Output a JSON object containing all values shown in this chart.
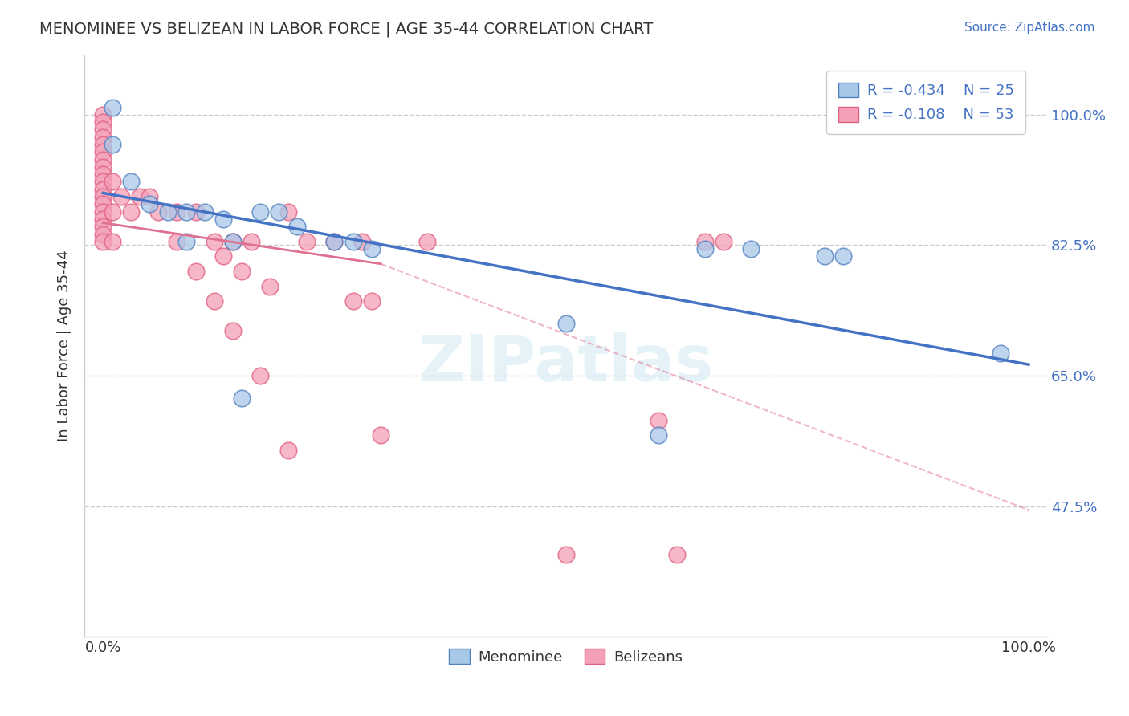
{
  "title": "MENOMINEE VS BELIZEAN IN LABOR FORCE | AGE 35-44 CORRELATION CHART",
  "source": "Source: ZipAtlas.com",
  "ylabel": "In Labor Force | Age 35-44",
  "xlim": [
    -0.02,
    1.02
  ],
  "ylim": [
    0.3,
    1.08
  ],
  "yticks": [
    0.475,
    0.65,
    0.825,
    1.0
  ],
  "ytick_labels": [
    "47.5%",
    "65.0%",
    "82.5%",
    "100.0%"
  ],
  "xtick_labels": [
    "0.0%",
    "100.0%"
  ],
  "legend_labels": [
    "Menominee",
    "Belizeans"
  ],
  "menominee_R": "-0.434",
  "menominee_N": "25",
  "belizean_R": "-0.108",
  "belizean_N": "53",
  "menominee_color": "#a8c8e8",
  "belizean_color": "#f4a0b8",
  "menominee_edge_color": "#5080c0",
  "belizean_edge_color": "#e06080",
  "menominee_line_color": "#4472c4",
  "belizean_line_color": "#e07090",
  "watermark": "ZIPatlas",
  "background_color": "#ffffff",
  "menominee_x": [
    0.01,
    0.01,
    0.03,
    0.05,
    0.07,
    0.09,
    0.09,
    0.11,
    0.13,
    0.14,
    0.15,
    0.17,
    0.19,
    0.21,
    0.25,
    0.27,
    0.29,
    0.5,
    0.65,
    0.7,
    0.78,
    0.8,
    0.95,
    0.97,
    0.6
  ],
  "menominee_y": [
    1.01,
    0.96,
    0.91,
    0.88,
    0.87,
    0.87,
    0.83,
    0.87,
    0.86,
    0.83,
    0.62,
    0.87,
    0.87,
    0.85,
    0.83,
    0.83,
    0.82,
    0.72,
    0.82,
    0.82,
    0.81,
    0.81,
    1.01,
    0.68,
    0.57
  ],
  "belizean_x": [
    0.0,
    0.0,
    0.0,
    0.0,
    0.0,
    0.0,
    0.0,
    0.0,
    0.0,
    0.0,
    0.0,
    0.0,
    0.0,
    0.0,
    0.0,
    0.0,
    0.0,
    0.0,
    0.01,
    0.01,
    0.01,
    0.02,
    0.03,
    0.04,
    0.05,
    0.06,
    0.08,
    0.1,
    0.12,
    0.13,
    0.14,
    0.15,
    0.16,
    0.18,
    0.2,
    0.22,
    0.25,
    0.27,
    0.28,
    0.29,
    0.3,
    0.35,
    0.6,
    0.62,
    0.65,
    0.67,
    0.5,
    0.08,
    0.1,
    0.12,
    0.14,
    0.17,
    0.2
  ],
  "belizean_y": [
    1.0,
    0.99,
    0.98,
    0.97,
    0.96,
    0.95,
    0.94,
    0.93,
    0.92,
    0.91,
    0.9,
    0.89,
    0.88,
    0.87,
    0.86,
    0.85,
    0.84,
    0.83,
    0.91,
    0.87,
    0.83,
    0.89,
    0.87,
    0.89,
    0.89,
    0.87,
    0.87,
    0.87,
    0.83,
    0.81,
    0.83,
    0.79,
    0.83,
    0.77,
    0.87,
    0.83,
    0.83,
    0.75,
    0.83,
    0.75,
    0.57,
    0.83,
    0.59,
    0.41,
    0.83,
    0.83,
    0.41,
    0.83,
    0.79,
    0.75,
    0.71,
    0.65,
    0.55
  ],
  "men_line_x0": 0.0,
  "men_line_y0": 0.895,
  "men_line_x1": 1.0,
  "men_line_y1": 0.665,
  "bel_line_solid_x0": 0.0,
  "bel_line_solid_y0": 0.855,
  "bel_line_solid_x1": 0.3,
  "bel_line_solid_y1": 0.8,
  "bel_line_dash_x0": 0.3,
  "bel_line_dash_y0": 0.8,
  "bel_line_dash_x1": 1.0,
  "bel_line_dash_y1": 0.47
}
